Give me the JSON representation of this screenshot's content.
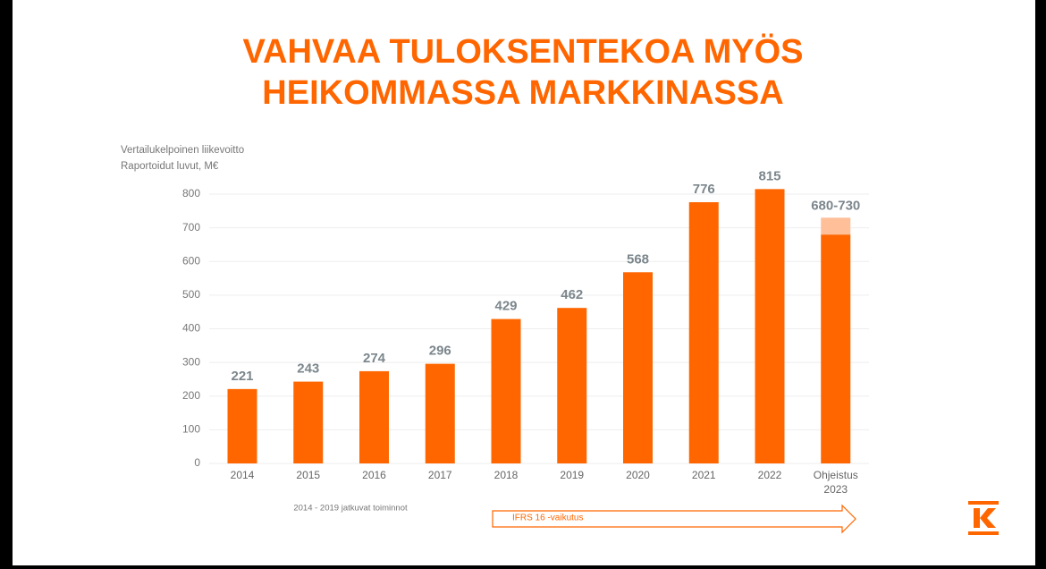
{
  "chart_data": {
    "type": "bar",
    "title": [
      "VAHVAA TULOKSENTEKOA MYÖS",
      "HEIKOMMASSA MARKKINASSA"
    ],
    "subtitle": [
      "Vertailukelpoinen liikevoitto",
      "Raportoidut luvut, M€"
    ],
    "categories": [
      "2014",
      "2015",
      "2016",
      "2017",
      "2018",
      "2019",
      "2020",
      "2021",
      "2022",
      "Ohjeistus\n2023"
    ],
    "values": [
      221,
      243,
      274,
      296,
      429,
      462,
      568,
      776,
      815,
      null
    ],
    "guidance": {
      "low": 680,
      "high": 730,
      "label": "680-730",
      "color": "#ffbf99"
    },
    "color": "#ff6600",
    "ylim": [
      0,
      800
    ],
    "yticks": [
      0,
      100,
      200,
      300,
      400,
      500,
      600,
      700,
      800
    ],
    "grid": true,
    "annotations": [
      "2014 - 2019 jatkuvat toiminnot",
      "IFRS 16 -vaikutus"
    ]
  }
}
